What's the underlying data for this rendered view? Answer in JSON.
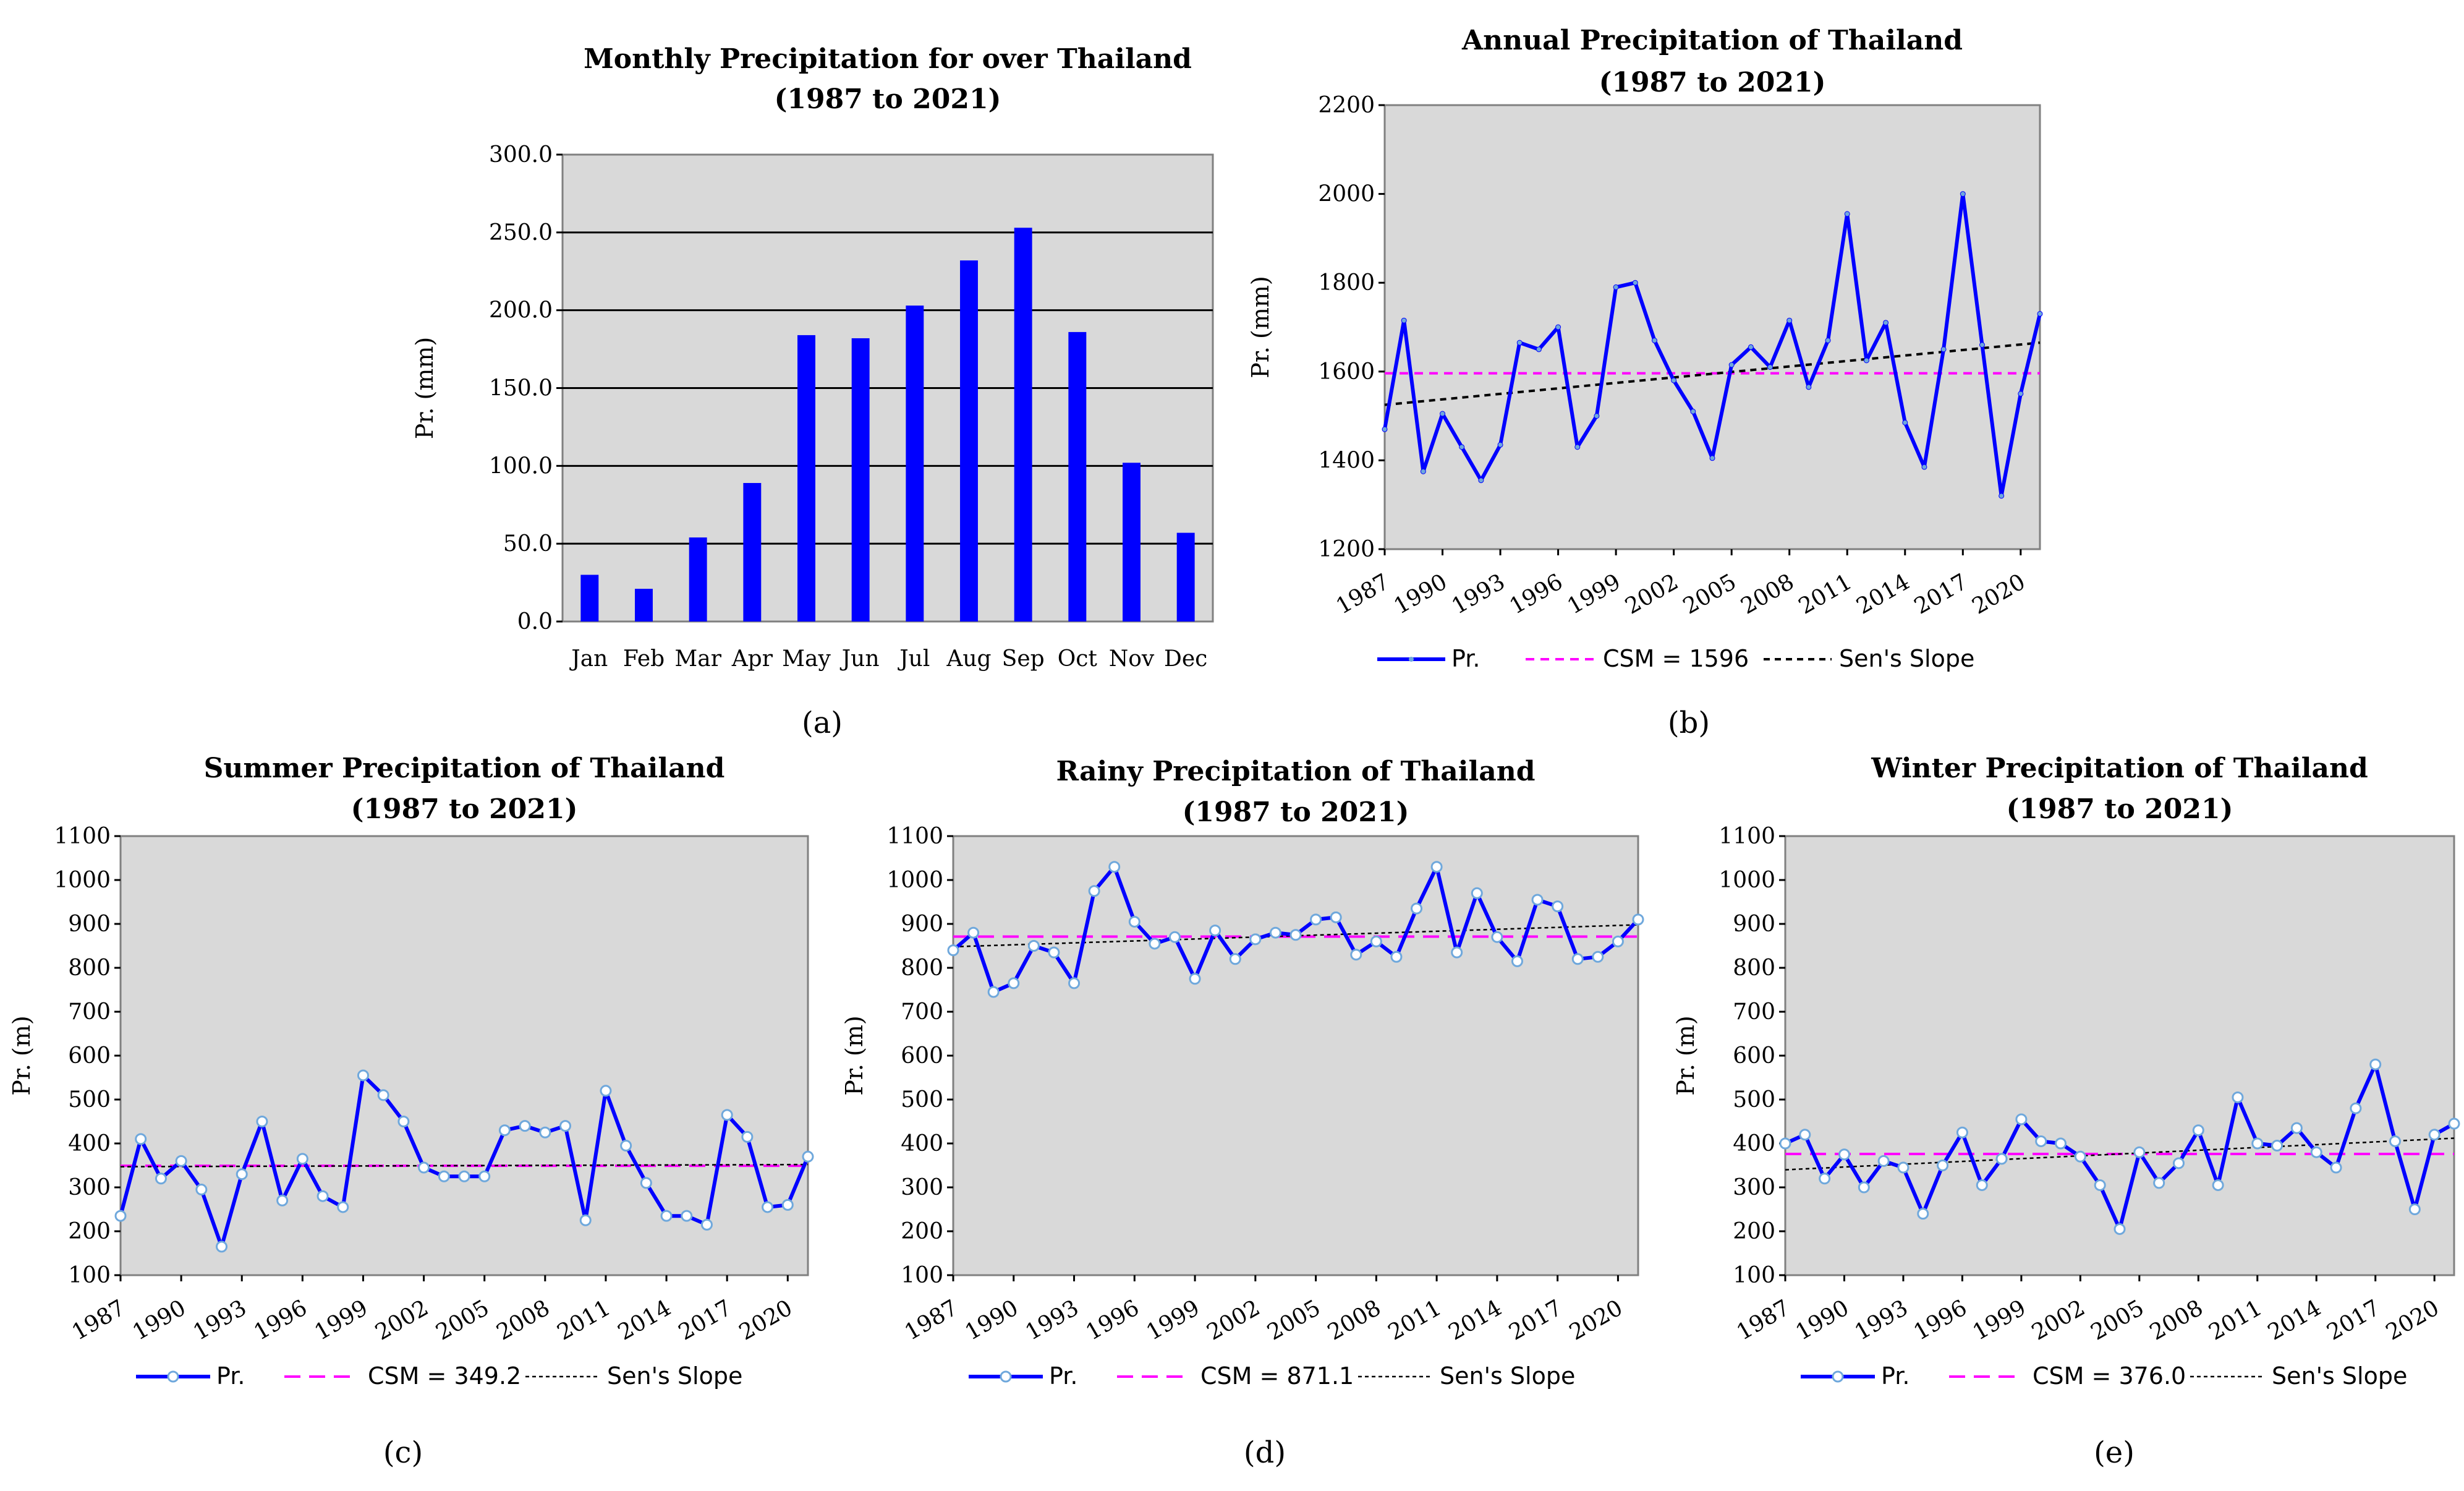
{
  "chart_data": [
    {
      "id": "a",
      "type": "bar",
      "title": "Monthly Precipitation  for over Thailand",
      "subtitle": "(1987 to 2021)",
      "ylabel": "Pr. (mm)",
      "ylim": [
        0,
        300
      ],
      "ytick_step": 50,
      "ytick_decimals": 1,
      "categories": [
        "Jan",
        "Feb",
        "Mar",
        "Apr",
        "May",
        "Jun",
        "Jul",
        "Aug",
        "Sep",
        "Oct",
        "Nov",
        "Dec"
      ],
      "values": [
        30,
        21,
        54,
        89,
        184,
        182,
        203,
        232,
        253,
        186,
        102,
        57
      ],
      "bar_color": "#0000ff",
      "panel_label": "(a)"
    },
    {
      "id": "b",
      "type": "line",
      "title": "Annual Precipitation  of Thailand",
      "subtitle": "(1987 to 2021)",
      "ylabel": "Pr. (mm)",
      "ylim": [
        1200,
        2200
      ],
      "ytick_step": 200,
      "x_start": 1987,
      "x_tick_labels": [
        "1987",
        "1990",
        "1993",
        "1996",
        "1999",
        "2002",
        "2005",
        "2008",
        "2011",
        "2014",
        "2017",
        "2020"
      ],
      "values": [
        1470,
        1715,
        1375,
        1505,
        1430,
        1355,
        1435,
        1665,
        1650,
        1700,
        1430,
        1500,
        1790,
        1800,
        1670,
        1580,
        1510,
        1405,
        1615,
        1655,
        1610,
        1715,
        1565,
        1670,
        1955,
        1625,
        1710,
        1485,
        1385,
        1650,
        2000,
        1660,
        1320,
        1550,
        1730
      ],
      "csm": 1596,
      "sen": [
        1525,
        1665
      ],
      "marker": "dot",
      "legend": [
        "Pr.",
        "CSM = 1596",
        "Sen's Slope"
      ],
      "panel_label": "(b)"
    },
    {
      "id": "c",
      "type": "line",
      "title": "Summer Precipitation  of Thailand",
      "subtitle": "(1987 to 2021)",
      "ylabel": "Pr. (m)",
      "ylim": [
        100,
        1100
      ],
      "ytick_step": 100,
      "x_start": 1987,
      "x_tick_labels": [
        "1987",
        "1990",
        "1993",
        "1996",
        "1999",
        "2002",
        "2005",
        "2008",
        "2011",
        "2014",
        "2017",
        "2020"
      ],
      "values": [
        235,
        410,
        320,
        360,
        295,
        165,
        330,
        450,
        270,
        365,
        280,
        255,
        555,
        510,
        450,
        345,
        325,
        325,
        325,
        430,
        440,
        425,
        440,
        225,
        520,
        395,
        310,
        235,
        235,
        215,
        465,
        415,
        255,
        260,
        370
      ],
      "csm": 349.2,
      "sen": [
        347,
        352
      ],
      "marker": "circle",
      "legend": [
        "Pr.",
        "CSM = 349.2",
        "Sen's Slope"
      ],
      "panel_label": "(c)"
    },
    {
      "id": "d",
      "type": "line",
      "title": "Rainy Precipitation  of Thailand",
      "subtitle": "(1987 to 2021)",
      "ylabel": "Pr. (m)",
      "ylim": [
        100,
        1100
      ],
      "ytick_step": 100,
      "x_start": 1987,
      "x_tick_labels": [
        "1987",
        "1990",
        "1993",
        "1996",
        "1999",
        "2002",
        "2005",
        "2008",
        "2011",
        "2014",
        "2017",
        "2020"
      ],
      "values": [
        840,
        880,
        745,
        765,
        850,
        835,
        765,
        975,
        1030,
        905,
        855,
        870,
        775,
        885,
        820,
        865,
        880,
        875,
        910,
        915,
        830,
        860,
        825,
        935,
        1030,
        835,
        970,
        870,
        815,
        955,
        940,
        820,
        825,
        860,
        910
      ],
      "csm": 871.1,
      "sen": [
        848,
        898
      ],
      "marker": "circle",
      "legend": [
        "Pr.",
        "CSM = 871.1",
        "Sen's Slope"
      ],
      "panel_label": "(d)"
    },
    {
      "id": "e",
      "type": "line",
      "title": "Winter Precipitation  of Thailand",
      "subtitle": "(1987 to 2021)",
      "ylabel": "Pr. (m)",
      "ylim": [
        100,
        1100
      ],
      "ytick_step": 100,
      "x_start": 1987,
      "x_tick_labels": [
        "1987",
        "1990",
        "1993",
        "1996",
        "1999",
        "2002",
        "2005",
        "2008",
        "2011",
        "2014",
        "2017",
        "2020"
      ],
      "values": [
        400,
        420,
        320,
        375,
        300,
        360,
        345,
        240,
        350,
        425,
        305,
        365,
        455,
        405,
        400,
        370,
        305,
        205,
        380,
        310,
        355,
        430,
        305,
        505,
        400,
        395,
        435,
        380,
        345,
        480,
        580,
        405,
        250,
        420,
        445
      ],
      "csm": 376.0,
      "sen": [
        340,
        412
      ],
      "marker": "circle",
      "legend": [
        "Pr.",
        "CSM = 376.0",
        "Sen's Slope"
      ],
      "panel_label": "(e)"
    }
  ],
  "colors": {
    "plot_bg": "#d9d9d9",
    "series": "#0000ff",
    "csm": "#ff00ff",
    "sen": "#000000"
  }
}
